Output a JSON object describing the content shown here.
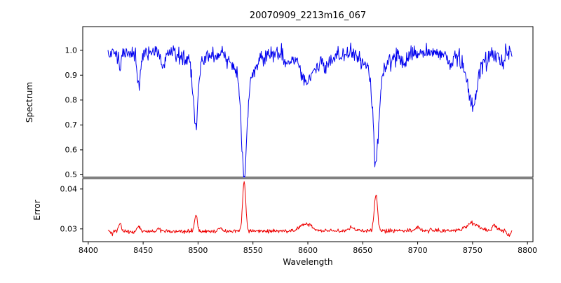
{
  "chart_data": {
    "type": "line",
    "title": "20070909_2213m16_067",
    "xlabel": "Wavelength",
    "xlim": [
      8395,
      8805
    ],
    "xticks": [
      8400,
      8450,
      8500,
      8550,
      8600,
      8650,
      8700,
      8750,
      8800
    ],
    "xtick_labels": [
      "8400",
      "8450",
      "8500",
      "8550",
      "8600",
      "8650",
      "8700",
      "8750",
      "8800"
    ],
    "grid": false,
    "legend": "none",
    "panels": [
      {
        "ylabel": "Spectrum",
        "ylim": [
          0.49,
          1.095
        ],
        "yticks": [
          0.5,
          0.6,
          0.7,
          0.8,
          0.9,
          1.0
        ],
        "ytick_labels": [
          "0.5",
          "0.6",
          "0.7",
          "0.8",
          "0.9",
          "1.0"
        ]
      },
      {
        "ylabel": "Error",
        "ylim": [
          0.0268,
          0.0426
        ],
        "yticks": [
          0.03,
          0.04
        ],
        "ytick_labels": [
          "0.03",
          "0.04"
        ]
      }
    ],
    "seed": 1337,
    "series": [
      {
        "name": "Spectrum",
        "panel": 0,
        "color": "#0000ee",
        "x_start": 8418,
        "x_end": 8786,
        "x_step": 0.5,
        "model": {
          "continuum": 0.99,
          "noise_sigma": 0.016,
          "lines": [
            {
              "center": 8429,
              "depth": 0.05,
              "sigma": 1.2
            },
            {
              "center": 8446,
              "depth": 0.13,
              "sigma": 1.5
            },
            {
              "center": 8468,
              "depth": 0.05,
              "sigma": 1.8
            },
            {
              "center": 8498,
              "depth": 0.25,
              "sigma": 2.0,
              "wing_depth": 0.05,
              "wing_sigma": 7
            },
            {
              "center": 8542,
              "depth": 0.385,
              "sigma": 2.4,
              "wing_depth": 0.105,
              "wing_sigma": 10
            },
            {
              "center": 8582,
              "depth": 0.04,
              "sigma": 4
            },
            {
              "center": 8598,
              "depth": 0.1,
              "sigma": 5
            },
            {
              "center": 8612,
              "depth": 0.05,
              "sigma": 9
            },
            {
              "center": 8662,
              "depth": 0.37,
              "sigma": 2.4,
              "wing_depth": 0.09,
              "wing_sigma": 9
            },
            {
              "center": 8688,
              "depth": 0.05,
              "sigma": 2.5
            },
            {
              "center": 8730,
              "depth": 0.04,
              "sigma": 2
            },
            {
              "center": 8750,
              "depth": 0.15,
              "sigma": 3.5,
              "wing_depth": 0.07,
              "wing_sigma": 9
            },
            {
              "center": 8777,
              "depth": 0.05,
              "sigma": 2
            }
          ]
        }
      },
      {
        "name": "Error",
        "panel": 1,
        "color": "#ee0000",
        "x_start": 8418,
        "x_end": 8786,
        "x_step": 0.5,
        "model": {
          "baseline": 0.0293,
          "slope": 1e-06,
          "noise_sigma": 0.00025,
          "peaks": [
            {
              "center": 8429,
              "height": 0.002,
              "sigma": 1.2
            },
            {
              "center": 8446,
              "height": 0.0012,
              "sigma": 1.2
            },
            {
              "center": 8464,
              "height": 0.001,
              "sigma": 1.2
            },
            {
              "center": 8498,
              "height": 0.0042,
              "sigma": 1.3
            },
            {
              "center": 8520,
              "height": 0.0008,
              "sigma": 1.5
            },
            {
              "center": 8542,
              "height": 0.0125,
              "sigma": 1.4
            },
            {
              "center": 8598,
              "height": 0.0018,
              "sigma": 5
            },
            {
              "center": 8640,
              "height": 0.0008,
              "sigma": 2
            },
            {
              "center": 8662,
              "height": 0.009,
              "sigma": 1.5
            },
            {
              "center": 8700,
              "height": 0.0008,
              "sigma": 2
            },
            {
              "center": 8750,
              "height": 0.0018,
              "sigma": 5
            },
            {
              "center": 8770,
              "height": 0.0012,
              "sigma": 2
            },
            {
              "center": 8783,
              "height": -0.0012,
              "sigma": 1.5
            }
          ]
        }
      }
    ]
  }
}
